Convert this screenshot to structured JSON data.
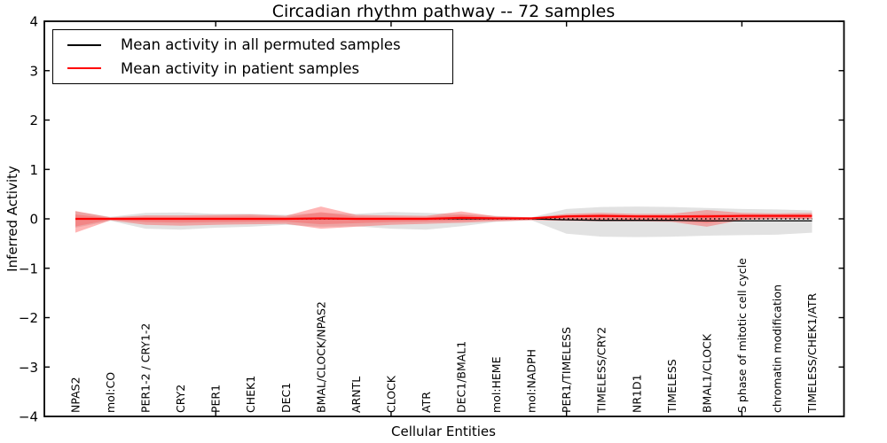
{
  "title": "Circadian rhythm pathway -- 72 samples",
  "legend": [
    {
      "label": "Mean activity in all permuted samples",
      "color": "#000000"
    },
    {
      "label": "Mean activity in patient samples",
      "color": "#ff0000"
    }
  ],
  "chart_data": {
    "type": "area",
    "title": "Circadian rhythm pathway -- 72 samples",
    "xlabel": "Cellular Entities",
    "ylabel": "Inferred Activity",
    "ylim": [
      -4,
      4
    ],
    "yticks": [
      4,
      3,
      2,
      1,
      0,
      -1,
      -2,
      -3,
      -4
    ],
    "grid": false,
    "legend_position": "upper left",
    "categories": [
      "NPAS2",
      "mol:CO",
      "PER1-2 / CRY1-2",
      "CRY2",
      "PER1",
      "CHEK1",
      "DEC1",
      "BMAL/CLOCK/NPAS2",
      "ARNTL",
      "CLOCK",
      "ATR",
      "DEC1/BMAL1",
      "mol:HEME",
      "mol:NADPH",
      "PER1/TIMELESS",
      "TIMELESS/CRY2",
      "NR1D1",
      "TIMELESS",
      "BMAL1/CLOCK",
      "S phase of mitotic cell cycle",
      "chromatin modification",
      "TIMELESS/CHEK1/ATR"
    ],
    "series": [
      {
        "name": "Permuted samples band upper",
        "role": "band_upper",
        "group": "permuted",
        "values": [
          0.15,
          0.04,
          0.12,
          0.13,
          0.1,
          0.1,
          0.08,
          0.12,
          0.1,
          0.14,
          0.12,
          0.1,
          0.06,
          0.03,
          0.2,
          0.24,
          0.25,
          0.24,
          0.22,
          0.2,
          0.19,
          0.17
        ]
      },
      {
        "name": "Permuted samples band lower",
        "role": "band_lower",
        "group": "permuted",
        "values": [
          -0.18,
          -0.04,
          -0.2,
          -0.22,
          -0.18,
          -0.16,
          -0.12,
          -0.16,
          -0.15,
          -0.2,
          -0.22,
          -0.15,
          -0.06,
          -0.03,
          -0.3,
          -0.36,
          -0.37,
          -0.36,
          -0.34,
          -0.33,
          -0.32,
          -0.28
        ]
      },
      {
        "name": "Patient samples band upper",
        "role": "band_upper",
        "group": "patient",
        "values": [
          0.16,
          0.03,
          0.07,
          0.07,
          0.08,
          0.09,
          0.06,
          0.25,
          0.08,
          0.07,
          0.06,
          0.15,
          0.05,
          0.03,
          0.1,
          0.12,
          0.1,
          0.1,
          0.18,
          0.12,
          0.11,
          0.12
        ]
      },
      {
        "name": "Patient samples band lower",
        "role": "band_lower",
        "group": "patient",
        "values": [
          -0.28,
          -0.03,
          -0.12,
          -0.14,
          -0.12,
          -0.11,
          -0.1,
          -0.2,
          -0.16,
          -0.12,
          -0.1,
          -0.08,
          -0.05,
          -0.03,
          -0.04,
          -0.05,
          -0.05,
          -0.06,
          -0.16,
          -0.02,
          0.0,
          0.0
        ]
      },
      {
        "name": "Mean activity in all permuted samples",
        "role": "mean_line",
        "group": "permuted",
        "values": [
          0,
          0,
          0,
          0,
          0,
          0,
          0,
          0,
          0,
          0,
          0,
          0,
          0,
          0,
          -0.02,
          -0.03,
          -0.03,
          -0.03,
          -0.04,
          -0.04,
          -0.04,
          -0.04
        ]
      },
      {
        "name": "Mean activity in patient samples",
        "role": "mean_line",
        "group": "patient",
        "values": [
          0,
          0,
          0,
          0,
          0,
          0,
          0,
          0.01,
          0,
          0,
          0,
          0.02,
          0.01,
          0.01,
          0.05,
          0.06,
          0.05,
          0.05,
          0.05,
          0.06,
          0.06,
          0.06
        ]
      }
    ],
    "zero_line": 0,
    "colors": {
      "permuted_band": "#bebebe",
      "patient_band": "#ff3c3c",
      "permuted_line": "#000000",
      "patient_line": "#ff0000",
      "axis": "#000000"
    }
  }
}
